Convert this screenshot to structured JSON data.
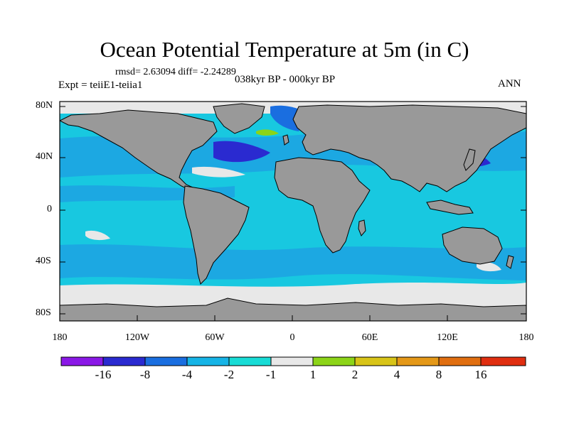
{
  "title": "Ocean Potential Temperature at 5m (in C)",
  "stats": "rmsd= 2.63094  diff= -2.24289",
  "experiment": "Expt = teiiE1-teiia1",
  "period": "038kyr BP - 000kyr BP",
  "season": "ANN",
  "lat_labels": [
    "80N",
    "40N",
    "0",
    "40S",
    "80S"
  ],
  "lon_labels": [
    "180",
    "120W",
    "60W",
    "0",
    "60E",
    "120E",
    "180"
  ],
  "legend": {
    "labels": [
      "-16",
      "-8",
      "-4",
      "-2",
      "-1",
      "1",
      "2",
      "4",
      "8",
      "16"
    ],
    "colors": [
      "#8a18e6",
      "#2a2ad0",
      "#1a6ee0",
      "#16b4e6",
      "#18dcd6",
      "#e8e8e8",
      "#8cd418",
      "#d8c418",
      "#e49818",
      "#e06e10",
      "#e02e10"
    ]
  },
  "palette": {
    "land": "#999999",
    "ocean_base": "#18c8e0",
    "cool_band": "#1ca8e2",
    "neutral": "#e8e8e8",
    "strong_cool": "#1a6ee0",
    "very_strong_cool": "#2a2ad0",
    "green": "#8cd418"
  }
}
